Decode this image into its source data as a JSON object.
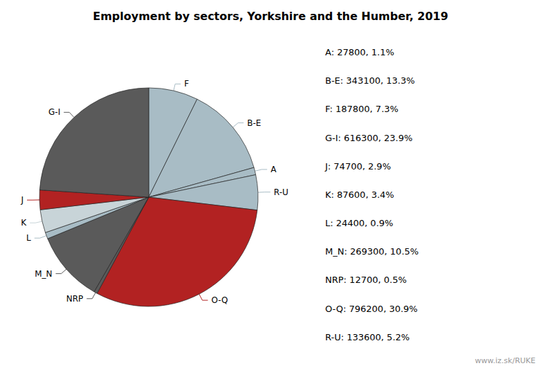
{
  "chart_data": {
    "type": "pie",
    "title": "Employment by sectors, Yorkshire and the Humber, 2019",
    "categories": [
      "F",
      "B-E",
      "A",
      "R-U",
      "O-Q",
      "NRP",
      "M_N",
      "L",
      "K",
      "J",
      "G-I"
    ],
    "values": [
      187800,
      343100,
      27800,
      133600,
      796200,
      12700,
      269300,
      24400,
      87600,
      74700,
      616300
    ],
    "colors": [
      "#a8bcc5",
      "#a8bcc5",
      "#a8bcc5",
      "#a8bcc5",
      "#b22222",
      "#5a5a5a",
      "#5a5a5a",
      "#a8bcc5",
      "#c8d4d8",
      "#b22222",
      "#5a5a5a"
    ],
    "annotations": [
      "A: 27800, 1.1%",
      "B-E: 343100, 13.3%",
      "F: 187800, 7.3%",
      "G-I: 616300, 23.9%",
      "J: 74700, 2.9%",
      "K: 87600, 3.4%",
      "L: 24400, 0.9%",
      "M_N: 269300, 10.5%",
      "NRP: 12700, 0.5%",
      "O-Q: 796200, 30.9%",
      "R-U: 133600, 5.2%",
      "www.iz.sk/RUKE"
    ]
  }
}
